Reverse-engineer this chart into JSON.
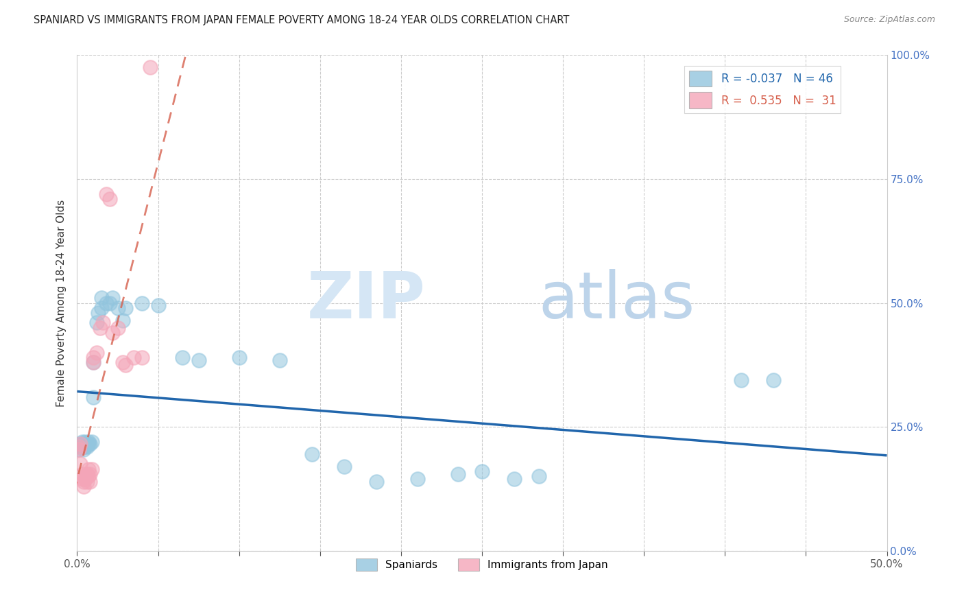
{
  "title": "SPANIARD VS IMMIGRANTS FROM JAPAN FEMALE POVERTY AMONG 18-24 YEAR OLDS CORRELATION CHART",
  "source": "Source: ZipAtlas.com",
  "ylabel": "Female Poverty Among 18-24 Year Olds",
  "xlim": [
    0.0,
    0.5
  ],
  "ylim": [
    0.0,
    1.0
  ],
  "spaniards_color": "#92c5de",
  "immigrants_color": "#f4a5b8",
  "spaniards_line_color": "#2166ac",
  "immigrants_line_color": "#d6604d",
  "spaniards_R": -0.037,
  "spaniards_N": 46,
  "immigrants_R": 0.535,
  "immigrants_N": 31,
  "legend_label1": "Spaniards",
  "legend_label2": "Immigrants from Japan",
  "watermark_zip": "ZIP",
  "watermark_atlas": "atlas",
  "spaniards_x": [
    0.001,
    0.002,
    0.002,
    0.003,
    0.003,
    0.003,
    0.004,
    0.004,
    0.004,
    0.005,
    0.005,
    0.005,
    0.006,
    0.006,
    0.007,
    0.007,
    0.008,
    0.009,
    0.01,
    0.01,
    0.012,
    0.013,
    0.015,
    0.015,
    0.018,
    0.02,
    0.022,
    0.025,
    0.028,
    0.03,
    0.04,
    0.05,
    0.065,
    0.075,
    0.1,
    0.125,
    0.145,
    0.165,
    0.185,
    0.21,
    0.235,
    0.25,
    0.27,
    0.285,
    0.41,
    0.43
  ],
  "spaniards_y": [
    0.205,
    0.215,
    0.21,
    0.21,
    0.215,
    0.22,
    0.215,
    0.21,
    0.205,
    0.21,
    0.215,
    0.22,
    0.21,
    0.215,
    0.215,
    0.22,
    0.215,
    0.22,
    0.38,
    0.31,
    0.46,
    0.48,
    0.49,
    0.51,
    0.5,
    0.5,
    0.51,
    0.49,
    0.465,
    0.49,
    0.5,
    0.495,
    0.39,
    0.385,
    0.39,
    0.385,
    0.195,
    0.17,
    0.14,
    0.145,
    0.155,
    0.16,
    0.145,
    0.15,
    0.345,
    0.345
  ],
  "immigrants_x": [
    0.001,
    0.001,
    0.002,
    0.002,
    0.003,
    0.003,
    0.004,
    0.004,
    0.005,
    0.005,
    0.006,
    0.006,
    0.007,
    0.007,
    0.008,
    0.008,
    0.009,
    0.01,
    0.01,
    0.012,
    0.014,
    0.016,
    0.018,
    0.02,
    0.022,
    0.025,
    0.028,
    0.03,
    0.035,
    0.04,
    0.045
  ],
  "immigrants_y": [
    0.21,
    0.205,
    0.215,
    0.175,
    0.155,
    0.145,
    0.14,
    0.13,
    0.15,
    0.145,
    0.155,
    0.14,
    0.165,
    0.15,
    0.14,
    0.155,
    0.165,
    0.38,
    0.39,
    0.4,
    0.45,
    0.46,
    0.72,
    0.71,
    0.44,
    0.45,
    0.38,
    0.375,
    0.39,
    0.39,
    0.975
  ]
}
